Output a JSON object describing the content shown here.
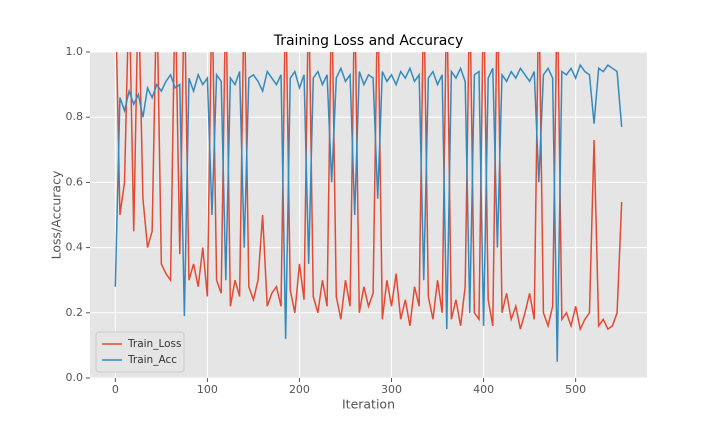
{
  "chart_data": {
    "type": "line",
    "title": "Training Loss and Accuracy",
    "x_label": "Iteration",
    "y_label": "Loss/Accuracy",
    "x": [
      0,
      5,
      10,
      15,
      20,
      25,
      30,
      35,
      40,
      45,
      50,
      55,
      60,
      65,
      70,
      75,
      80,
      85,
      90,
      95,
      100,
      105,
      110,
      115,
      120,
      125,
      130,
      135,
      140,
      145,
      150,
      155,
      160,
      165,
      170,
      175,
      180,
      185,
      190,
      195,
      200,
      205,
      210,
      215,
      220,
      225,
      230,
      235,
      240,
      245,
      250,
      255,
      260,
      265,
      270,
      275,
      280,
      285,
      290,
      295,
      300,
      305,
      310,
      315,
      320,
      325,
      330,
      335,
      340,
      345,
      350,
      355,
      360,
      365,
      370,
      375,
      380,
      385,
      390,
      395,
      400,
      405,
      410,
      415,
      420,
      425,
      430,
      435,
      440,
      445,
      450,
      455,
      460,
      465,
      470,
      475,
      480,
      485,
      490,
      495,
      500,
      505,
      510,
      515,
      520,
      525,
      530,
      535,
      540,
      545,
      550
    ],
    "series": [
      {
        "name": "Train_Loss",
        "color": "#E24A33",
        "values": [
          1.2,
          0.5,
          0.6,
          1.2,
          0.45,
          1.2,
          0.55,
          0.4,
          0.45,
          1.2,
          0.35,
          0.32,
          0.3,
          1.2,
          0.38,
          1.2,
          0.3,
          0.35,
          0.28,
          0.4,
          0.25,
          1.2,
          0.3,
          0.26,
          1.2,
          0.22,
          0.3,
          0.25,
          1.2,
          0.28,
          0.24,
          0.3,
          0.5,
          0.22,
          0.26,
          0.28,
          0.22,
          1.2,
          0.27,
          0.2,
          0.35,
          0.24,
          1.2,
          0.25,
          0.2,
          0.3,
          0.22,
          1.2,
          0.25,
          0.18,
          0.3,
          0.22,
          1.2,
          0.2,
          0.28,
          0.22,
          0.26,
          1.2,
          0.18,
          0.3,
          0.22,
          0.32,
          0.18,
          0.24,
          0.16,
          0.28,
          0.22,
          1.2,
          0.25,
          0.18,
          0.3,
          0.2,
          1.2,
          0.18,
          0.24,
          0.16,
          0.28,
          1.2,
          0.2,
          0.18,
          1.2,
          0.24,
          0.16,
          1.2,
          0.2,
          0.26,
          0.18,
          0.22,
          0.15,
          0.2,
          0.26,
          0.18,
          1.2,
          0.2,
          0.16,
          0.22,
          1.2,
          0.18,
          0.2,
          0.16,
          0.22,
          0.15,
          0.18,
          0.2,
          0.73,
          0.16,
          0.18,
          0.15,
          0.16,
          0.2,
          0.54
        ]
      },
      {
        "name": "Train_Acc",
        "color": "#348ABD",
        "values": [
          0.28,
          0.86,
          0.82,
          0.88,
          0.84,
          0.87,
          0.8,
          0.89,
          0.86,
          0.9,
          0.88,
          0.91,
          0.93,
          0.89,
          0.9,
          0.19,
          0.92,
          0.88,
          0.93,
          0.9,
          0.92,
          0.5,
          0.93,
          0.91,
          0.3,
          0.92,
          0.9,
          0.94,
          0.4,
          0.92,
          0.93,
          0.91,
          0.88,
          0.94,
          0.92,
          0.9,
          0.93,
          0.12,
          0.92,
          0.94,
          0.89,
          0.93,
          0.35,
          0.92,
          0.94,
          0.9,
          0.93,
          0.6,
          0.92,
          0.95,
          0.91,
          0.93,
          0.5,
          0.94,
          0.9,
          0.93,
          0.92,
          0.55,
          0.94,
          0.91,
          0.93,
          0.9,
          0.94,
          0.92,
          0.95,
          0.91,
          0.93,
          0.3,
          0.92,
          0.94,
          0.9,
          0.93,
          0.15,
          0.94,
          0.92,
          0.95,
          0.91,
          0.2,
          0.93,
          0.94,
          0.16,
          0.92,
          0.95,
          0.4,
          0.93,
          0.91,
          0.94,
          0.92,
          0.95,
          0.93,
          0.91,
          0.94,
          0.6,
          0.93,
          0.95,
          0.92,
          0.05,
          0.94,
          0.93,
          0.95,
          0.92,
          0.96,
          0.94,
          0.93,
          0.78,
          0.95,
          0.94,
          0.96,
          0.95,
          0.94,
          0.77
        ]
      }
    ],
    "xlim": [
      -27.5,
      577.5
    ],
    "xticks": [
      0,
      100,
      200,
      300,
      400,
      500
    ],
    "ylim": [
      0,
      1
    ],
    "yticks": [
      {
        "value": 0,
        "label": "0.0"
      },
      0.2,
      0.4,
      0.6,
      0.8,
      {
        "value": 1,
        "label": "1.0"
      }
    ],
    "grid": true,
    "legend": "lower left"
  }
}
